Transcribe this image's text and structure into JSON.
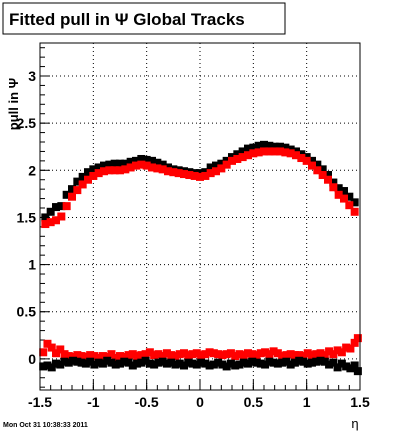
{
  "chart_data": {
    "type": "scatter",
    "title": "Fitted pull in  Ψ   Global Tracks",
    "xlabel": "η",
    "ylabel": "pull in Ψ",
    "xlim": [
      -1.5,
      1.5
    ],
    "ylim": [
      -0.33,
      3.35
    ],
    "x_ticks": [
      -1.5,
      -1,
      -0.5,
      0,
      0.5,
      1,
      1.5
    ],
    "x_tick_labels": [
      "-1.5",
      "-1",
      "-0.5",
      "0",
      "0.5",
      "1",
      "1.5"
    ],
    "y_ticks": [
      0,
      0.5,
      1,
      1.5,
      2,
      2.5,
      3
    ],
    "y_tick_labels": [
      "0",
      "0.5",
      "1",
      "1.5",
      "2",
      "2.5",
      "3"
    ],
    "grid": true,
    "footer": "Mon Oct 31 10:38:33 2011",
    "series": [
      {
        "color": "#000000",
        "marker": "square",
        "x": [
          -1.45,
          -1.4,
          -1.35,
          -1.3,
          -1.25,
          -1.2,
          -1.15,
          -1.1,
          -1.05,
          -1.0,
          -0.95,
          -0.9,
          -0.85,
          -0.8,
          -0.75,
          -0.7,
          -0.65,
          -0.6,
          -0.55,
          -0.5,
          -0.45,
          -0.4,
          -0.35,
          -0.3,
          -0.25,
          -0.2,
          -0.15,
          -0.1,
          -0.05,
          0.0,
          0.05,
          0.1,
          0.15,
          0.2,
          0.25,
          0.3,
          0.35,
          0.4,
          0.45,
          0.5,
          0.55,
          0.6,
          0.65,
          0.7,
          0.75,
          0.8,
          0.85,
          0.9,
          0.95,
          1.0,
          1.05,
          1.1,
          1.15,
          1.2,
          1.25,
          1.3,
          1.35,
          1.4,
          1.45
        ],
        "y": [
          1.5,
          1.56,
          1.61,
          1.62,
          1.74,
          1.8,
          1.88,
          1.93,
          1.98,
          2.01,
          2.03,
          2.05,
          2.06,
          2.07,
          2.07,
          2.07,
          2.09,
          2.1,
          2.12,
          2.11,
          2.1,
          2.08,
          2.06,
          2.03,
          2.01,
          2.0,
          1.99,
          1.98,
          1.97,
          1.97,
          1.98,
          2.03,
          2.05,
          2.07,
          2.1,
          2.14,
          2.17,
          2.2,
          2.23,
          2.24,
          2.26,
          2.27,
          2.26,
          2.25,
          2.25,
          2.24,
          2.22,
          2.2,
          2.17,
          2.14,
          2.1,
          2.06,
          2.01,
          1.95,
          1.87,
          1.81,
          1.78,
          1.72,
          1.66
        ]
      },
      {
        "color": "#ff0000",
        "marker": "square",
        "x": [
          -1.45,
          -1.4,
          -1.35,
          -1.3,
          -1.25,
          -1.2,
          -1.15,
          -1.1,
          -1.05,
          -1.0,
          -0.95,
          -0.9,
          -0.85,
          -0.8,
          -0.75,
          -0.7,
          -0.65,
          -0.6,
          -0.55,
          -0.5,
          -0.45,
          -0.4,
          -0.35,
          -0.3,
          -0.25,
          -0.2,
          -0.15,
          -0.1,
          -0.05,
          0.0,
          0.05,
          0.1,
          0.15,
          0.2,
          0.25,
          0.3,
          0.35,
          0.4,
          0.45,
          0.5,
          0.55,
          0.6,
          0.65,
          0.7,
          0.75,
          0.8,
          0.85,
          0.9,
          0.95,
          1.0,
          1.05,
          1.1,
          1.15,
          1.2,
          1.25,
          1.3,
          1.35,
          1.4,
          1.45
        ],
        "y": [
          1.43,
          1.45,
          1.47,
          1.51,
          1.62,
          1.72,
          1.79,
          1.85,
          1.9,
          1.94,
          1.97,
          1.99,
          2.0,
          2.0,
          2.0,
          2.01,
          2.03,
          2.05,
          2.06,
          2.05,
          2.03,
          2.02,
          2.01,
          1.99,
          1.98,
          1.97,
          1.96,
          1.95,
          1.94,
          1.93,
          1.94,
          1.97,
          1.99,
          2.02,
          2.06,
          2.1,
          2.12,
          2.14,
          2.16,
          2.18,
          2.19,
          2.2,
          2.2,
          2.2,
          2.2,
          2.19,
          2.18,
          2.16,
          2.13,
          2.1,
          2.05,
          2.0,
          1.95,
          1.9,
          1.82,
          1.74,
          1.7,
          1.63,
          1.56
        ]
      },
      {
        "color": "#ff0000",
        "marker": "square",
        "x": [
          -1.47,
          -1.43,
          -1.39,
          -1.35,
          -1.31,
          -1.27,
          -1.23,
          -1.19,
          -1.15,
          -1.11,
          -1.07,
          -1.03,
          -0.99,
          -0.95,
          -0.91,
          -0.87,
          -0.83,
          -0.79,
          -0.75,
          -0.71,
          -0.67,
          -0.63,
          -0.59,
          -0.55,
          -0.51,
          -0.47,
          -0.43,
          -0.39,
          -0.35,
          -0.31,
          -0.27,
          -0.23,
          -0.19,
          -0.15,
          -0.11,
          -0.07,
          -0.03,
          0.01,
          0.05,
          0.09,
          0.13,
          0.17,
          0.21,
          0.25,
          0.29,
          0.33,
          0.37,
          0.41,
          0.45,
          0.49,
          0.53,
          0.57,
          0.61,
          0.65,
          0.69,
          0.73,
          0.77,
          0.81,
          0.85,
          0.89,
          0.93,
          0.97,
          1.01,
          1.05,
          1.09,
          1.13,
          1.17,
          1.21,
          1.25,
          1.29,
          1.33,
          1.37,
          1.41,
          1.45,
          1.48
        ],
        "y": [
          0.07,
          0.16,
          0.12,
          0.06,
          0.1,
          0.05,
          0.03,
          0.02,
          0.04,
          0.03,
          0.02,
          0.04,
          0.03,
          0.01,
          0.03,
          0.02,
          0.05,
          0.01,
          0.03,
          0.02,
          0.04,
          0.05,
          0.03,
          0.04,
          0.05,
          0.07,
          0.04,
          0.05,
          0.03,
          0.06,
          0.04,
          0.03,
          0.05,
          0.06,
          0.04,
          0.05,
          0.06,
          0.04,
          0.05,
          0.07,
          0.06,
          0.05,
          0.04,
          0.05,
          0.06,
          0.03,
          0.05,
          0.04,
          0.06,
          0.05,
          0.04,
          0.06,
          0.07,
          0.05,
          0.08,
          0.06,
          0.03,
          0.04,
          0.05,
          0.04,
          0.04,
          0.03,
          0.06,
          0.04,
          0.05,
          0.06,
          0.04,
          0.08,
          0.05,
          0.09,
          0.07,
          0.12,
          0.11,
          0.17,
          0.22
        ]
      },
      {
        "color": "#000000",
        "marker": "square",
        "x": [
          -1.47,
          -1.43,
          -1.39,
          -1.35,
          -1.31,
          -1.27,
          -1.23,
          -1.19,
          -1.15,
          -1.11,
          -1.07,
          -1.03,
          -0.99,
          -0.95,
          -0.91,
          -0.87,
          -0.83,
          -0.79,
          -0.75,
          -0.71,
          -0.67,
          -0.63,
          -0.59,
          -0.55,
          -0.51,
          -0.47,
          -0.43,
          -0.39,
          -0.35,
          -0.31,
          -0.27,
          -0.23,
          -0.19,
          -0.15,
          -0.11,
          -0.07,
          -0.03,
          0.01,
          0.05,
          0.09,
          0.13,
          0.17,
          0.21,
          0.25,
          0.29,
          0.33,
          0.37,
          0.41,
          0.45,
          0.49,
          0.53,
          0.57,
          0.61,
          0.65,
          0.69,
          0.73,
          0.77,
          0.81,
          0.85,
          0.89,
          0.93,
          0.97,
          1.01,
          1.05,
          1.09,
          1.13,
          1.17,
          1.21,
          1.25,
          1.29,
          1.33,
          1.37,
          1.41,
          1.45,
          1.48
        ],
        "y": [
          -0.08,
          -0.07,
          -0.09,
          -0.05,
          -0.06,
          -0.03,
          -0.04,
          -0.02,
          -0.03,
          -0.04,
          -0.05,
          -0.03,
          -0.06,
          -0.04,
          -0.05,
          -0.02,
          -0.04,
          -0.06,
          -0.05,
          -0.03,
          -0.04,
          -0.07,
          -0.05,
          -0.04,
          -0.02,
          -0.05,
          -0.06,
          -0.04,
          -0.03,
          -0.05,
          -0.04,
          -0.06,
          -0.05,
          -0.07,
          -0.04,
          -0.05,
          -0.06,
          -0.04,
          -0.05,
          -0.07,
          -0.06,
          -0.04,
          -0.06,
          -0.08,
          -0.05,
          -0.07,
          -0.06,
          -0.04,
          -0.05,
          -0.03,
          -0.04,
          -0.05,
          -0.06,
          -0.03,
          -0.04,
          -0.05,
          -0.04,
          -0.03,
          -0.06,
          -0.04,
          -0.02,
          -0.03,
          -0.05,
          -0.04,
          -0.03,
          -0.02,
          -0.03,
          -0.06,
          -0.04,
          -0.09,
          -0.05,
          -0.08,
          -0.1,
          -0.07,
          -0.13
        ]
      }
    ]
  }
}
